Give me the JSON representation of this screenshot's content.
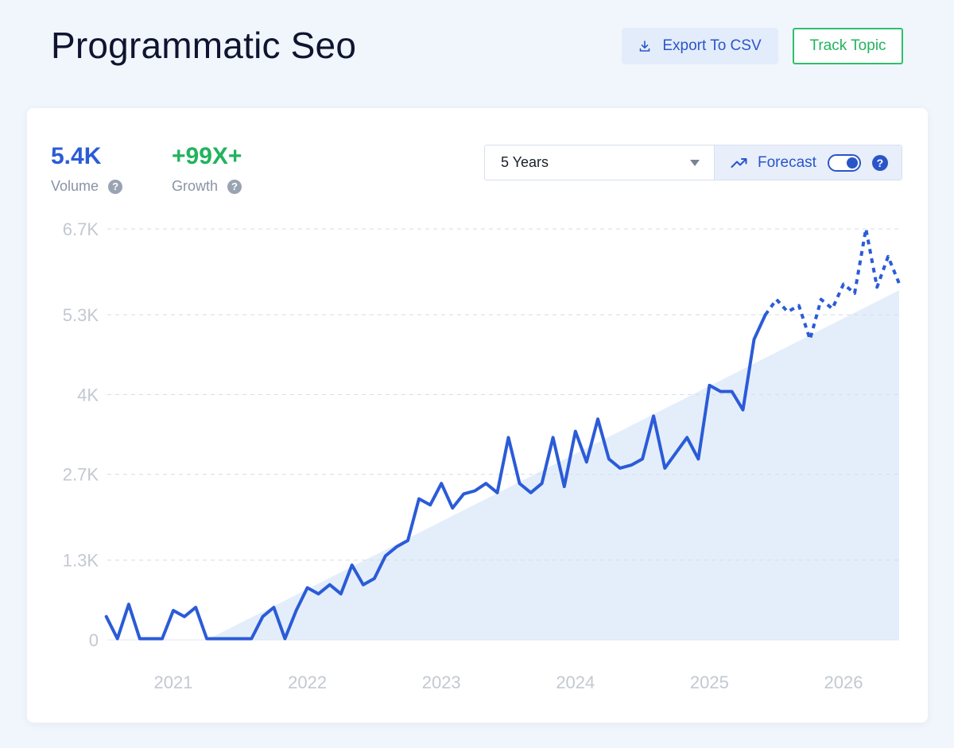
{
  "header": {
    "title": "Programmatic Seo",
    "export_label": "Export To CSV",
    "export_icon": "download-icon",
    "track_label": "Track Topic"
  },
  "stats": {
    "volume_value": "5.4K",
    "volume_label": "Volume",
    "growth_value": "+99X+",
    "growth_label": "Growth",
    "help_glyph": "?"
  },
  "controls": {
    "range_selected": "5 Years",
    "forecast_label": "Forecast",
    "forecast_icon": "trending-up-icon",
    "forecast_enabled": true
  },
  "colors": {
    "accent": "#2b5bd7",
    "growth": "#22b35e",
    "trend_fill": "#e4eefb",
    "grid": "#d5dbe6",
    "tick": "#c3c8d2"
  },
  "chart_data": {
    "type": "line",
    "y_ticks": [
      "0",
      "1.3K",
      "2.7K",
      "4K",
      "5.3K",
      "6.7K"
    ],
    "y_tick_values": [
      0,
      1300,
      2700,
      4000,
      5300,
      6700
    ],
    "ylim": [
      0,
      6700
    ],
    "x_ticks": [
      "2021",
      "2022",
      "2023",
      "2024",
      "2025",
      "2026"
    ],
    "x_tick_values": [
      2021,
      2022,
      2023,
      2024,
      2025,
      2026
    ],
    "xlim": [
      2020.5,
      2026.45
    ],
    "grid": true,
    "series": [
      {
        "style": "solid",
        "x": [
          2020.5,
          2020.583,
          2020.667,
          2020.75,
          2020.833,
          2020.917,
          2021.0,
          2021.083,
          2021.167,
          2021.25,
          2021.333,
          2021.417,
          2021.5,
          2021.583,
          2021.667,
          2021.75,
          2021.833,
          2021.917,
          2022.0,
          2022.083,
          2022.167,
          2022.25,
          2022.333,
          2022.417,
          2022.5,
          2022.583,
          2022.667,
          2022.75,
          2022.833,
          2022.917,
          2023.0,
          2023.083,
          2023.167,
          2023.25,
          2023.333,
          2023.417,
          2023.5,
          2023.583,
          2023.667,
          2023.75,
          2023.833,
          2023.917,
          2024.0,
          2024.083,
          2024.167,
          2024.25,
          2024.333,
          2024.417,
          2024.5,
          2024.583,
          2024.667,
          2024.75,
          2024.833,
          2024.917,
          2025.0,
          2025.083,
          2025.167,
          2025.25,
          2025.333,
          2025.417
        ],
        "values": [
          380,
          20,
          580,
          20,
          20,
          20,
          480,
          380,
          530,
          20,
          20,
          20,
          20,
          20,
          380,
          530,
          20,
          480,
          850,
          750,
          900,
          750,
          1220,
          900,
          1000,
          1370,
          1520,
          1620,
          2300,
          2200,
          2550,
          2150,
          2380,
          2430,
          2550,
          2400,
          3300,
          2550,
          2400,
          2550,
          3300,
          2500,
          3400,
          2900,
          3600,
          2950,
          2800,
          2850,
          2950,
          3650,
          2800,
          3050,
          3300,
          2950,
          4150,
          4050,
          4050,
          3750,
          4900,
          5300
        ]
      },
      {
        "style": "dashed",
        "name": "Forecast",
        "x": [
          2025.417,
          2025.5,
          2025.583,
          2025.667,
          2025.75,
          2025.833,
          2025.917,
          2026.0,
          2026.083,
          2026.167,
          2026.25,
          2026.333,
          2026.417
        ],
        "values": [
          5300,
          5550,
          5350,
          5450,
          4900,
          5550,
          5400,
          5800,
          5650,
          6700,
          5750,
          6250,
          5800
        ]
      }
    ],
    "trend_area": {
      "x": [
        2021.25,
        2026.45
      ],
      "values": [
        0,
        5700
      ]
    }
  }
}
